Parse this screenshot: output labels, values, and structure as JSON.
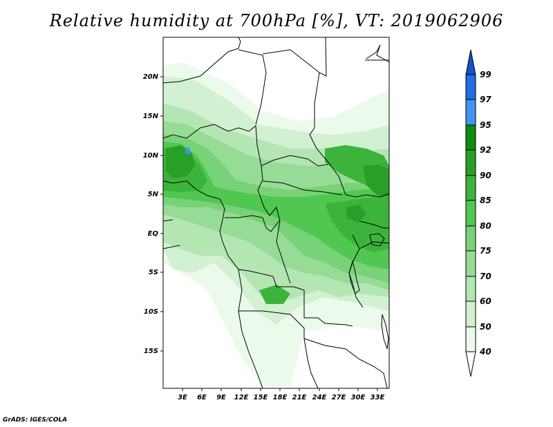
{
  "title": "Relative humidity at 700hPa [%], VT: 2019062906",
  "credit": "GrADS: IGES/COLA",
  "lat_labels": [
    "20N",
    "15N",
    "10N",
    "5N",
    "EQ",
    "5S",
    "10S",
    "15S"
  ],
  "lon_labels": [
    "3E",
    "6E",
    "9E",
    "12E",
    "15E",
    "18E",
    "21E",
    "24E",
    "27E",
    "30E",
    "33E"
  ],
  "colorbar": {
    "levels": [
      "99",
      "97",
      "95",
      "92",
      "90",
      "85",
      "80",
      "75",
      "70",
      "60",
      "50",
      "40"
    ],
    "colors": [
      "#1450c8",
      "#1e6ee6",
      "#3c96f0",
      "#0f8c0f",
      "#28a028",
      "#3cb43c",
      "#50c850",
      "#78d278",
      "#96dc96",
      "#b4e6b4",
      "#d2f0d2",
      "#ebfaeb",
      "#ffffff"
    ]
  }
}
